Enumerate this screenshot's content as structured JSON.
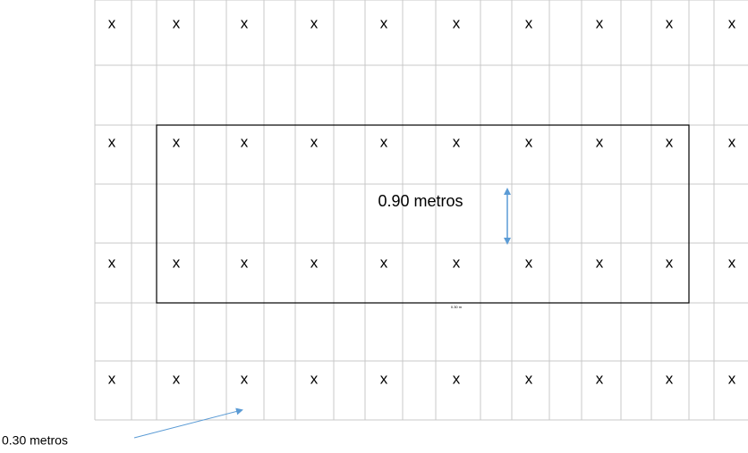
{
  "grid": {
    "x_rows": [
      [
        "x",
        "x",
        "x",
        "x",
        "x",
        "x",
        "x",
        "x",
        "x",
        "x"
      ],
      [
        "x",
        "x",
        "x",
        "x",
        "x",
        "x",
        "x",
        "x",
        "x",
        "x"
      ],
      [
        "x",
        "x",
        "x",
        "x",
        "x",
        "x",
        "x",
        "x",
        "x",
        "x"
      ],
      [
        "x",
        "x",
        "x",
        "x",
        "x",
        "x",
        "x",
        "x",
        "x",
        "x"
      ]
    ]
  },
  "labels": {
    "row_spacing": "0.90 metros",
    "small_note": "0.30 m",
    "plant_spacing": "0.30 metros"
  }
}
